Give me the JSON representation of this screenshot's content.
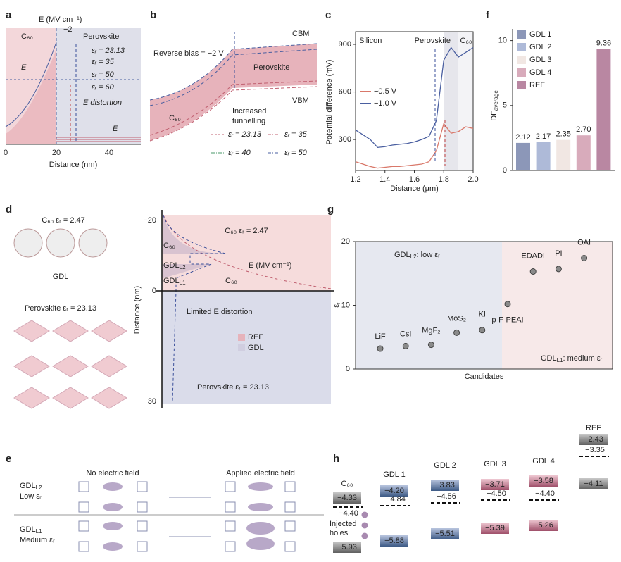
{
  "panel_labels": [
    "a",
    "b",
    "c",
    "d",
    "e",
    "f",
    "g",
    "h"
  ],
  "chart_data": [
    {
      "type": "line",
      "xlabel": "Distance (µm)",
      "ylabel": "Potential difference (mV)",
      "x": [
        1.2,
        1.25,
        1.3,
        1.35,
        1.4,
        1.45,
        1.5,
        1.55,
        1.6,
        1.65,
        1.7,
        1.75,
        1.8,
        1.85,
        1.9,
        1.95,
        2.0
      ],
      "xlim": [
        1.2,
        2.0
      ],
      "xticks": [
        1.2,
        1.4,
        1.6,
        1.8,
        {
          "value": 2.0,
          "label": "2.0"
        }
      ],
      "ylim": [
        105,
        980
      ],
      "yticks": [
        300,
        600,
        900
      ],
      "series": [
        {
          "name": "−0.5 V",
          "color": "#d9786a",
          "values": [
            160,
            145,
            130,
            120,
            125,
            130,
            130,
            135,
            140,
            145,
            160,
            230,
            400,
            340,
            350,
            380,
            370
          ]
        },
        {
          "name": "−1.0 V",
          "color": "#4a5fa0",
          "values": [
            360,
            330,
            300,
            250,
            255,
            265,
            270,
            275,
            285,
            300,
            320,
            420,
            800,
            880,
            820,
            850,
            880
          ]
        }
      ],
      "annotations": [
        "Silicon",
        "Perovskite",
        "C₆₀"
      ]
    },
    {
      "type": "bar",
      "ylabel": "DF",
      "ylabel_sub": "average",
      "categories": [
        "GDL 1",
        "GDL 2",
        "GDL 3",
        "GDL 4",
        "REF"
      ],
      "values": [
        2.12,
        2.17,
        2.35,
        2.7,
        9.36
      ],
      "value_labels": [
        "2.12",
        "2.17",
        "2.35",
        "2.70",
        "9.36"
      ],
      "colors": [
        "#8c97b8",
        "#aebad8",
        "#f1e7e3",
        "#d8abbb",
        "#b987a2"
      ],
      "ylim": [
        0,
        10.9
      ],
      "yticks": [
        0,
        5,
        10
      ]
    },
    {
      "type": "scatter",
      "xlabel": "Candidates",
      "ylabel": "ε",
      "ylabel_sub": "r",
      "categories": [
        "LiF",
        "CsI",
        "MgF₂",
        "MoS₂",
        "KI",
        "p-F-PEAI",
        "EDADI",
        "PI",
        "OAI"
      ],
      "values": [
        3.2,
        3.6,
        3.8,
        5.7,
        6.1,
        10.2,
        15.3,
        15.7,
        17.4
      ],
      "color": "#8a8a8a",
      "ylim": [
        0,
        20
      ],
      "yticks": [
        0,
        10,
        20
      ],
      "annotations": [
        {
          "main": "GDL",
          "sub": "L2",
          "rest": ": low εᵣ"
        },
        {
          "main": "GDL",
          "sub": "L1",
          "rest": ": medium εᵣ"
        }
      ]
    }
  ],
  "panel_a": {
    "e_axis": "E (MV cm⁻¹)",
    "e_tick": "−2",
    "c60": "C₆₀",
    "perovskite": "Perovskite",
    "legend": [
      "εᵣ = 23.13",
      "εᵣ = 35",
      "εᵣ = 50",
      "εᵣ = 60"
    ],
    "distortion": "E distortion",
    "e1": "E",
    "e2": "E",
    "xticks": [
      "0",
      "20",
      "40"
    ],
    "xlabel": "Distance (nm)"
  },
  "panel_b": {
    "bias": "Reverse bias = −2 V",
    "cbm": "CBM",
    "perovskite": "Perovskite",
    "vbm": "VBM",
    "c60": "C₆₀",
    "tunnelling": [
      "Increased",
      "tunnelling"
    ],
    "legend": [
      "εᵣ = 23.13",
      "εᵣ = 35",
      "εᵣ = 40",
      "εᵣ = 50"
    ]
  },
  "panel_d": {
    "c60_eps": "C₆₀ εᵣ = 2.47",
    "gdl": "GDL",
    "perov_eps": "Perovskite εᵣ = 23.13",
    "yticks": [
      "−20",
      "0",
      "30"
    ],
    "ylabel": "Distance (nm)",
    "region_c60": "C₆₀ εᵣ = 2.47",
    "c60_a": "C₆₀",
    "gdl_l2": {
      "main": "GDL",
      "sub": "L2"
    },
    "gdl_l1": {
      "main": "GDL",
      "sub": "L1"
    },
    "c60_b": "C₆₀",
    "e_axis": "E (MV cm⁻¹)",
    "limited": "Limited E distortion",
    "legend": [
      "REF",
      "GDL"
    ],
    "region_perov": "Perovskite εᵣ = 23.13"
  },
  "panel_e": {
    "gdl_l2": {
      "main": "GDL",
      "sub": "L2"
    },
    "low": "Low εᵣ",
    "gdl_l1": {
      "main": "GDL",
      "sub": "L1"
    },
    "medium": "Medium εᵣ",
    "no_field": "No electric field",
    "applied": "Applied electric field"
  },
  "panel_h": {
    "columns": [
      {
        "name": "C₆₀",
        "levels": [
          "−4.33",
          "−4.40",
          "−5.93"
        ]
      },
      {
        "name": "GDL 1",
        "levels": [
          "−4.20",
          "−4.84",
          "−5.88"
        ]
      },
      {
        "name": "GDL 2",
        "levels": [
          "−3.83",
          "−4.56",
          "−5.51"
        ]
      },
      {
        "name": "GDL 3",
        "levels": [
          "−3.71",
          "−4.50",
          "−5.39"
        ]
      },
      {
        "name": "GDL 4",
        "levels": [
          "−3.58",
          "−4.40",
          "−5.26"
        ]
      },
      {
        "name": "REF",
        "levels": [
          "−2.43",
          "−3.35",
          "−4.11"
        ]
      }
    ],
    "holes": [
      "Injected",
      "holes"
    ]
  }
}
